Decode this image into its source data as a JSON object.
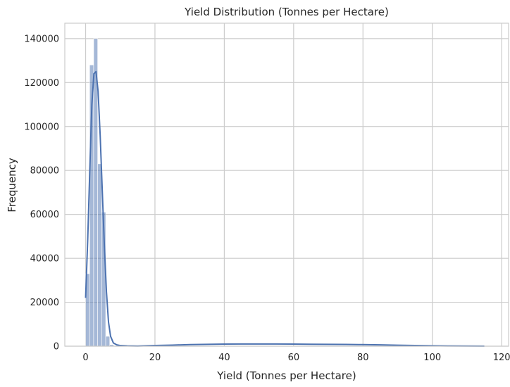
{
  "chart_data": {
    "type": "bar",
    "title": "Yield Distribution (Tonnes per Hectare)",
    "xlabel": "Yield (Tonnes per Hectare)",
    "ylabel": "Frequency",
    "xlim": [
      -6,
      122
    ],
    "ylim": [
      0,
      147000
    ],
    "xticks": [
      0,
      20,
      40,
      60,
      80,
      100,
      120
    ],
    "yticks": [
      0,
      20000,
      40000,
      60000,
      80000,
      100000,
      120000,
      140000
    ],
    "grid": true,
    "histogram": {
      "bin_width": 1.16,
      "bins": [
        {
          "x0": 0.0,
          "x1": 1.16,
          "count": 33000
        },
        {
          "x0": 1.16,
          "x1": 2.32,
          "count": 128000
        },
        {
          "x0": 2.32,
          "x1": 3.48,
          "count": 140000
        },
        {
          "x0": 3.48,
          "x1": 4.64,
          "count": 83000
        },
        {
          "x0": 4.64,
          "x1": 5.8,
          "count": 61000
        },
        {
          "x0": 5.8,
          "x1": 6.96,
          "count": 4500
        },
        {
          "x0": 6.96,
          "x1": 8.12,
          "count": 700
        },
        {
          "x0": 8.12,
          "x1": 9.28,
          "count": 150
        }
      ]
    },
    "kde": {
      "x": [
        0,
        0.6,
        1.2,
        1.8,
        2.4,
        3.0,
        3.6,
        4.2,
        4.8,
        5.4,
        6.0,
        6.6,
        7.2,
        8.0,
        9.0,
        10.0,
        12.0,
        15.0,
        20.0,
        25.0,
        30.0,
        35.0,
        40.0,
        45.0,
        50.0,
        55.0,
        60.0,
        65.0,
        70.0,
        75.0,
        80.0,
        85.0,
        90.0,
        95.0,
        100.0,
        105.0,
        110.0,
        115.0
      ],
      "y": [
        22000,
        48000,
        80000,
        110000,
        124000,
        125000,
        116000,
        96000,
        71000,
        46000,
        25000,
        11000,
        4500,
        1500,
        600,
        300,
        150,
        100,
        300,
        500,
        700,
        850,
        950,
        1000,
        1000,
        1000,
        950,
        900,
        850,
        800,
        700,
        600,
        450,
        320,
        200,
        120,
        60,
        25
      ]
    }
  }
}
